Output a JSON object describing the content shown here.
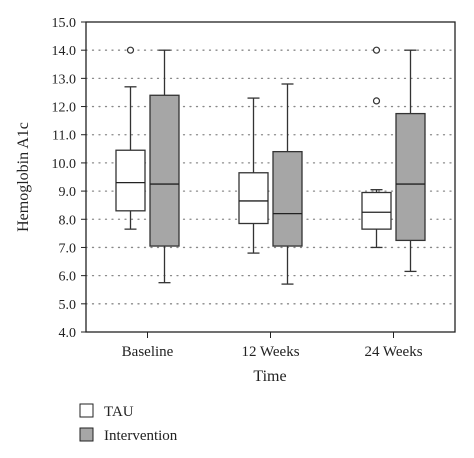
{
  "chart_data": {
    "type": "boxplot",
    "title": "",
    "xlabel": "Time",
    "ylabel": "Hemoglobin A1c",
    "ylim": [
      4.0,
      15.0
    ],
    "yticks": [
      "4.0",
      "5.0",
      "6.0",
      "7.0",
      "8.0",
      "9.0",
      "10.0",
      "11.0",
      "12.0",
      "13.0",
      "14.0",
      "15.0"
    ],
    "categories": [
      "Baseline",
      "12 Weeks",
      "24 Weeks"
    ],
    "grid": "dotted horizontal",
    "legend_position": "bottom-left",
    "series": [
      {
        "name": "TAU",
        "color": "#ffffff",
        "boxes": [
          {
            "whisker_low": 7.65,
            "q1": 8.3,
            "median": 9.3,
            "q3": 10.45,
            "whisker_high": 12.7,
            "outliers": [
              14.0
            ]
          },
          {
            "whisker_low": 6.8,
            "q1": 7.85,
            "median": 8.65,
            "q3": 9.65,
            "whisker_high": 12.3,
            "outliers": []
          },
          {
            "whisker_low": 7.0,
            "q1": 7.65,
            "median": 8.25,
            "q3": 8.95,
            "whisker_high": 9.05,
            "outliers": [
              12.2,
              14.0
            ]
          }
        ]
      },
      {
        "name": "Intervention",
        "color": "#a6a6a6",
        "boxes": [
          {
            "whisker_low": 5.75,
            "q1": 7.05,
            "median": 9.25,
            "q3": 12.4,
            "whisker_high": 14.0,
            "outliers": []
          },
          {
            "whisker_low": 5.7,
            "q1": 7.05,
            "median": 8.2,
            "q3": 10.4,
            "whisker_high": 12.8,
            "outliers": []
          },
          {
            "whisker_low": 6.15,
            "q1": 7.25,
            "median": 9.25,
            "q3": 11.75,
            "whisker_high": 14.0,
            "outliers": []
          }
        ]
      }
    ]
  }
}
